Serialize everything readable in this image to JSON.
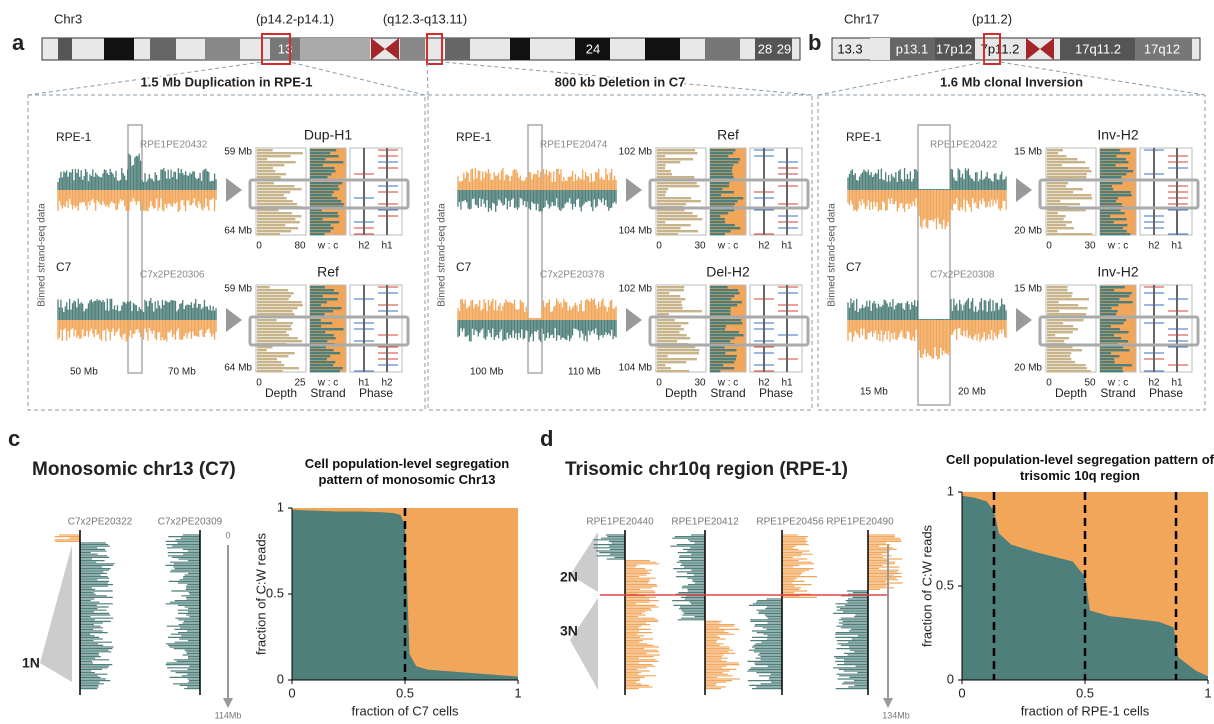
{
  "panel_labels": [
    "a",
    "b",
    "c",
    "d"
  ],
  "ideograms": [
    {
      "name": "Chr3",
      "bands": [
        "13",
        "24",
        "28",
        "29"
      ],
      "regions": [
        "(p14.2-p14.1)",
        "(q12.3-q13.11)"
      ]
    },
    {
      "name": "Chr17",
      "bands": [
        "13.3",
        "p13.1",
        "17p12",
        "7p11.2",
        "17q11.2",
        "17q12"
      ],
      "regions": [
        "(p11.2)"
      ]
    }
  ],
  "y_axis_label": "Binned strand-seq data",
  "track_labels": [
    "Depth",
    "Strand",
    "Phase"
  ],
  "strand_axis": "w : c",
  "events": [
    {
      "title": "1.5 Mb Duplication in RPE-1",
      "coords": [
        "50 Mb",
        "70 Mb"
      ],
      "rows": [
        {
          "sample": "RPE-1",
          "cell": "RPE1PE20432",
          "haplotype": "Dup-H1",
          "yticks": [
            "59 Mb",
            "64 Mb"
          ],
          "xticks": [
            0,
            80
          ],
          "phase": [
            "h2",
            "h1"
          ]
        },
        {
          "sample": "C7",
          "cell": "C7x2PE20306",
          "haplotype": "Ref",
          "yticks": [
            "59 Mb",
            "64 Mb"
          ],
          "xticks": [
            0,
            25
          ],
          "phase": [
            "h1",
            "h2"
          ]
        }
      ]
    },
    {
      "title": "800 kb Deletion in C7",
      "coords": [
        "100 Mb",
        "110 Mb"
      ],
      "rows": [
        {
          "sample": "RPE-1",
          "cell": "RPE1PE20474",
          "haplotype": "Ref",
          "yticks": [
            "102 Mb",
            "104 Mb"
          ],
          "xticks": [
            0,
            30
          ],
          "phase": [
            "h2",
            "h1"
          ]
        },
        {
          "sample": "C7",
          "cell": "C7x2PE20378",
          "haplotype": "Del-H2",
          "yticks": [
            "102 Mb",
            "104 Mb"
          ],
          "xticks": [
            0,
            30
          ],
          "phase": [
            "h2",
            "h1"
          ]
        }
      ]
    },
    {
      "title": "1.6 Mb clonal Inversion",
      "coords": [
        "15 Mb",
        "20 Mb"
      ],
      "rows": [
        {
          "sample": "RPE-1",
          "cell": "RPE1PE20422",
          "haplotype": "Inv-H2",
          "yticks": [
            "15 Mb",
            "20 Mb"
          ],
          "xticks": [
            0,
            30
          ],
          "phase": [
            "h2",
            "h1"
          ]
        },
        {
          "sample": "C7",
          "cell": "C7x2PE20308",
          "haplotype": "Inv-H2",
          "yticks": [
            "15 Mb",
            "20 Mb"
          ],
          "xticks": [
            0,
            50
          ],
          "phase": [
            "h2",
            "h1"
          ]
        }
      ]
    }
  ],
  "panel_c": {
    "title": "Monosomic chr13 (C7)",
    "cells": [
      "C7x2PE20322",
      "C7x2PE20309"
    ],
    "scale": [
      0,
      "114Mb"
    ],
    "copy_number": [
      "1N"
    ]
  },
  "panel_d": {
    "title": "Trisomic chr10q region (RPE-1)",
    "cells": [
      "RPE1PE20440",
      "RPE1PE20412",
      "RPE1PE20456",
      "RPE1PE20490"
    ],
    "scale": [
      "134Mb"
    ],
    "copy_number": [
      "2N",
      "3N"
    ]
  },
  "chart_data": [
    {
      "type": "area",
      "title": "Cell population-level segregation pattern of monosomic Chr13",
      "x_label": "fraction of C7 cells",
      "y_label": "fraction of C:W reads",
      "xlim": [
        0,
        1
      ],
      "ylim": [
        0,
        1
      ],
      "xticks": [
        0,
        0.5,
        1
      ],
      "yticks": [
        0,
        0.5,
        1
      ],
      "x": [
        0,
        0.1,
        0.2,
        0.3,
        0.4,
        0.45,
        0.48,
        0.5,
        0.52,
        0.55,
        0.6,
        0.8,
        1
      ],
      "values": [
        0.99,
        0.985,
        0.98,
        0.98,
        0.975,
        0.97,
        0.96,
        0.9,
        0.15,
        0.08,
        0.06,
        0.04,
        0.02
      ],
      "colors": [
        "#4f7f7a",
        "#f2a65a"
      ],
      "vlines": [
        0.5
      ]
    },
    {
      "type": "area",
      "title": "Cell population-level segregation pattern of trisomic 10q region",
      "x_label": "fraction of RPE-1 cells",
      "y_label": "fraction of C:W reads",
      "xlim": [
        0,
        1
      ],
      "ylim": [
        0,
        1
      ],
      "xticks": [
        0,
        0.5,
        1
      ],
      "yticks": [
        0,
        0.5,
        1
      ],
      "x": [
        0,
        0.05,
        0.1,
        0.13,
        0.15,
        0.2,
        0.3,
        0.45,
        0.5,
        0.52,
        0.6,
        0.8,
        0.86,
        0.88,
        0.95,
        1
      ],
      "values": [
        0.98,
        0.97,
        0.95,
        0.9,
        0.78,
        0.72,
        0.68,
        0.63,
        0.55,
        0.37,
        0.34,
        0.31,
        0.28,
        0.12,
        0.05,
        0.02
      ],
      "colors": [
        "#4f7f7a",
        "#f2a65a"
      ],
      "vlines": [
        0.13,
        0.5,
        0.87
      ]
    }
  ]
}
